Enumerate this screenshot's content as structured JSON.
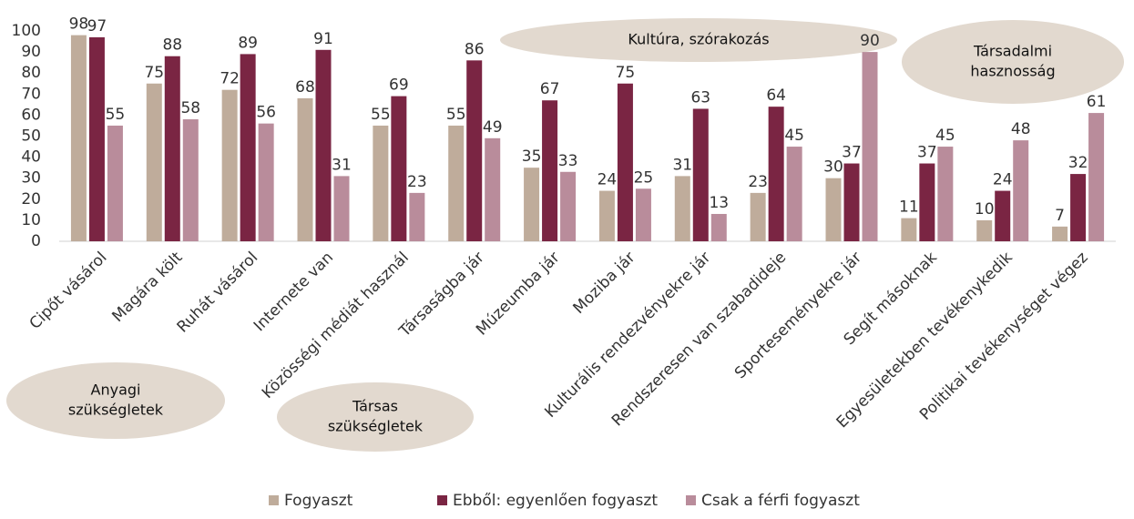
{
  "chart_data": {
    "type": "bar",
    "categories": [
      "Cipőt vásárol",
      "Magára költ",
      "Ruhát vásárol",
      "Internete van",
      "Közösségi médiát használ",
      "Társaságba jár",
      "Múzeumba jár",
      "Moziba jár",
      "Kulturális rendezvényekre jár",
      "Rendszeresen van szabadideje",
      "Sporteseményekre jár",
      "Segít másoknak",
      "Egyesületekben tevékenykedik",
      "Politikai tevékenységet végez"
    ],
    "series": [
      {
        "name": "Fogyaszt",
        "color": "#bfac9b",
        "values": [
          98,
          75,
          72,
          68,
          55,
          55,
          35,
          24,
          31,
          23,
          30,
          11,
          10,
          7
        ]
      },
      {
        "name": "Ebből: egyenlően fogyaszt",
        "color": "#7a2543",
        "values": [
          97,
          88,
          89,
          91,
          69,
          86,
          67,
          75,
          63,
          64,
          37,
          37,
          24,
          32
        ]
      },
      {
        "name": "Csak a férfi fogyaszt",
        "color": "#b98c9b",
        "values": [
          55,
          58,
          56,
          31,
          23,
          49,
          33,
          25,
          13,
          45,
          90,
          45,
          48,
          61
        ]
      }
    ],
    "ylim": [
      0,
      100
    ],
    "yticks": [
      0,
      10,
      20,
      30,
      40,
      50,
      60,
      70,
      80,
      90,
      100
    ],
    "annotations": [
      {
        "lines": [
          "Anyagi",
          "szükségletek"
        ]
      },
      {
        "lines": [
          "Társas",
          "szükségletek"
        ]
      },
      {
        "lines": [
          "Kultúra, szórakozás"
        ]
      },
      {
        "lines": [
          "Társadalmi",
          "hasznosság"
        ]
      }
    ]
  }
}
